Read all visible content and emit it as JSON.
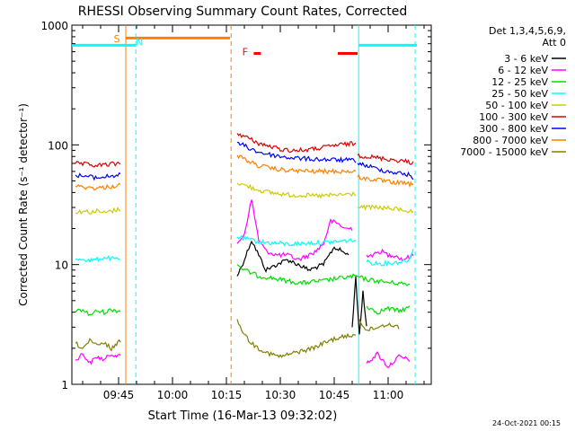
{
  "chart_data": {
    "type": "line",
    "title": "RHESSI Observing Summary Count Rates, Corrected",
    "xlabel": "Start Time (16-Mar-13 09:32:02)",
    "ylabel": "Corrected Count Rate (s⁻¹ detector⁻¹)",
    "yscale": "log",
    "ylim": [
      1,
      1000
    ],
    "xlim_minutes": [
      0,
      100
    ],
    "x_ticks": [
      {
        "m": 13,
        "label": "09:45"
      },
      {
        "m": 28,
        "label": "10:00"
      },
      {
        "m": 43,
        "label": "10:15"
      },
      {
        "m": 58,
        "label": "10:30"
      },
      {
        "m": 73,
        "label": "10:45"
      },
      {
        "m": 88,
        "label": "11:00"
      }
    ],
    "y_ticks": [
      {
        "v": 1,
        "label": "1"
      },
      {
        "v": 10,
        "label": "10"
      },
      {
        "v": 100,
        "label": "100"
      },
      {
        "v": 1000,
        "label": "1000"
      }
    ],
    "legend_header": [
      "Det 1,3,4,5,6,9,",
      "Att 0"
    ],
    "footer_date": "24-Oct-2021 00:15",
    "bands": [
      {
        "name": "3 - 6 keV",
        "color": "#000000",
        "seg": [
          {
            "x": [
              46,
              48,
              50,
              52,
              54,
              57,
              60,
              63,
              66,
              70,
              73,
              75,
              77
            ],
            "y": [
              8,
              11,
              16,
              12,
              9,
              10,
              11,
              10,
              9,
              10,
              14,
              13,
              12
            ]
          },
          {
            "x": [
              78,
              79,
              80,
              81,
              82
            ],
            "y": [
              3,
              8,
              2.5,
              6,
              3
            ]
          }
        ]
      },
      {
        "name": "6 - 12 keV",
        "color": "#ff00ff",
        "seg": [
          {
            "x": [
              1,
              3,
              5,
              7,
              9,
              11,
              13.5
            ],
            "y": [
              1.6,
              1.8,
              1.5,
              1.7,
              1.6,
              1.8,
              1.7
            ]
          },
          {
            "x": [
              46,
              48,
              50,
              52,
              54,
              57,
              60,
              63,
              66,
              68,
              70,
              72,
              74,
              76,
              78
            ],
            "y": [
              15,
              18,
              35,
              16,
              13,
              12,
              12,
              11,
              12,
              13,
              15,
              23,
              22,
              20,
              20
            ]
          },
          {
            "x": [
              82,
              84,
              86,
              88,
              90,
              92,
              95
            ],
            "y": [
              12,
              12,
              13,
              12,
              12,
              11,
              12
            ]
          },
          {
            "x": [
              82,
              85,
              88,
              91,
              94
            ],
            "y": [
              1.5,
              1.8,
              1.4,
              1.7,
              1.6
            ]
          }
        ]
      },
      {
        "name": "12 - 25 keV",
        "color": "#00dd00",
        "seg": [
          {
            "x": [
              1,
              3,
              5,
              7,
              9,
              11,
              13.5
            ],
            "y": [
              4,
              4.2,
              3.8,
              4.1,
              4,
              4.2,
              4.1
            ]
          },
          {
            "x": [
              46,
              48,
              50,
              52,
              55,
              58,
              61,
              64,
              67,
              70,
              73,
              76,
              79,
              82,
              85,
              88,
              91,
              94
            ],
            "y": [
              10,
              9,
              8.5,
              8,
              7.8,
              7.5,
              7.2,
              7,
              7.2,
              7.3,
              7.6,
              7.8,
              8,
              7.5,
              7.3,
              7.1,
              7,
              6.8
            ]
          },
          {
            "x": [
              82,
              85,
              88,
              91,
              94
            ],
            "y": [
              4.5,
              4,
              4.3,
              4.1,
              4.4
            ]
          }
        ]
      },
      {
        "name": "25 - 50 keV",
        "color": "#00ffff",
        "seg": [
          {
            "x": [
              1,
              3,
              5,
              7,
              9,
              11,
              13.5
            ],
            "y": [
              11,
              11.2,
              10.8,
              11,
              11.5,
              11.2,
              11
            ]
          },
          {
            "x": [
              46,
              48,
              50,
              52,
              55,
              58,
              61,
              64,
              67,
              70,
              73,
              76,
              79
            ],
            "y": [
              17,
              16.5,
              16,
              15.5,
              15.2,
              15,
              14.8,
              15,
              15.2,
              15.3,
              15.5,
              15.8,
              16
            ]
          },
          {
            "x": [
              82,
              85,
              88,
              91,
              94,
              95
            ],
            "y": [
              10.5,
              10.2,
              10.3,
              10.5,
              11,
              14
            ]
          }
        ]
      },
      {
        "name": "50 - 100 keV",
        "color": "#cccc00",
        "seg": [
          {
            "x": [
              1,
              3,
              5,
              7,
              9,
              11,
              13.5
            ],
            "y": [
              27,
              28,
              27.5,
              28,
              27,
              28,
              29
            ]
          },
          {
            "x": [
              46,
              48,
              50,
              52,
              55,
              58,
              61,
              64,
              67,
              70,
              73,
              76,
              79
            ],
            "y": [
              48,
              46,
              44,
              42,
              40,
              39,
              38,
              38,
              37.5,
              37.5,
              38,
              38.5,
              39
            ]
          },
          {
            "x": [
              79.5,
              82,
              85,
              88,
              91,
              94,
              95
            ],
            "y": [
              30,
              30,
              30,
              29.5,
              29,
              28,
              27
            ]
          }
        ]
      },
      {
        "name": "100 - 300 keV",
        "color": "#dd0000",
        "seg": [
          {
            "x": [
              1,
              3,
              5,
              7,
              9,
              11,
              13.5
            ],
            "y": [
              70,
              69,
              68,
              67,
              68,
              69,
              70
            ]
          },
          {
            "x": [
              46,
              48,
              50,
              52,
              55,
              58,
              61,
              64,
              67,
              70,
              73,
              76,
              79
            ],
            "y": [
              125,
              118,
              110,
              103,
              97,
              92,
              90,
              90,
              92,
              95,
              99,
              101,
              103
            ]
          },
          {
            "x": [
              79.5,
              82,
              85,
              88,
              91,
              94,
              95
            ],
            "y": [
              82,
              80,
              78,
              76,
              74,
              72,
              70
            ]
          }
        ]
      },
      {
        "name": "300 - 800 keV",
        "color": "#0000ff",
        "seg": [
          {
            "x": [
              1,
              3,
              5,
              7,
              9,
              11,
              13.5
            ],
            "y": [
              56,
              55,
              54,
              53,
              54,
              55,
              56
            ]
          },
          {
            "x": [
              46,
              48,
              50,
              52,
              55,
              58,
              61,
              64,
              67,
              70,
              73,
              76,
              79
            ],
            "y": [
              105,
              98,
              92,
              87,
              83,
              80,
              78,
              77,
              76,
              75.5,
              75,
              74.5,
              74
            ]
          },
          {
            "x": [
              79.5,
              82,
              85,
              88,
              91,
              94,
              95
            ],
            "y": [
              70,
              67,
              63,
              60,
              58,
              56,
              53
            ]
          }
        ]
      },
      {
        "name": "800 - 7000 keV",
        "color": "#ff8000",
        "seg": [
          {
            "x": [
              1,
              3,
              5,
              7,
              9,
              11,
              13.5
            ],
            "y": [
              45,
              44.5,
              44,
              43.5,
              44,
              45,
              46
            ]
          },
          {
            "x": [
              46,
              48,
              50,
              52,
              55,
              58,
              61,
              64,
              67,
              70,
              73,
              76,
              79
            ],
            "y": [
              82,
              76,
              71,
              67,
              64,
              62,
              61,
              60.5,
              60,
              60,
              60,
              60,
              60
            ]
          },
          {
            "x": [
              79.5,
              82,
              85,
              88,
              91,
              94,
              95
            ],
            "y": [
              54,
              52,
              51,
              49,
              48,
              47,
              46
            ]
          }
        ]
      },
      {
        "name": "7000 - 15000 keV",
        "color": "#808000",
        "seg": [
          {
            "x": [
              1,
              3,
              5,
              7,
              9,
              11,
              13.5
            ],
            "y": [
              2.2,
              2,
              2.3,
              2.1,
              2.2,
              2,
              2.3
            ]
          },
          {
            "x": [
              46,
              48,
              50,
              52,
              55,
              58,
              61,
              64,
              67,
              70,
              73,
              76,
              79
            ],
            "y": [
              3.5,
              2.6,
              2.2,
              2,
              1.8,
              1.7,
              1.8,
              1.9,
              2,
              2.2,
              2.4,
              2.5,
              2.6
            ]
          },
          {
            "x": [
              80,
              82,
              85,
              88,
              91
            ],
            "y": [
              3.5,
              2.8,
              3,
              3.2,
              3
            ]
          }
        ]
      }
    ],
    "flags": [
      {
        "label": "S",
        "color": "#ff8000",
        "label_m": 12.5,
        "label_v": 720,
        "bar": {
          "m1": 15,
          "m2": 44,
          "v": 780
        }
      },
      {
        "label": "N",
        "color": "#00ffff",
        "label_m": 18.8,
        "label_v": 680
      },
      {
        "label": "F",
        "color": "#ff0000",
        "label_m": 48.2,
        "label_v": 560,
        "bar": {
          "m1": 50.6,
          "m2": 52.6,
          "v": 580
        }
      },
      {
        "label": "",
        "color": "#ff0000",
        "bar": {
          "m1": 74,
          "m2": 79.5,
          "v": 580
        }
      }
    ],
    "event_lines": [
      {
        "m": 15,
        "color": "#ff8000",
        "dashed": false
      },
      {
        "m": 17.8,
        "color": "#00ffff",
        "dashed": true
      },
      {
        "m": 44.3,
        "color": "#ff8000",
        "dashed": true
      },
      {
        "m": 79.8,
        "color": "#00ffff",
        "dashed": false
      },
      {
        "m": 95.5,
        "color": "#00ffff",
        "dashed": true
      }
    ],
    "night_lines": [
      {
        "m1": 0,
        "m2": 17.8,
        "v": 680
      },
      {
        "m1": 79.8,
        "m2": 96,
        "v": 680
      }
    ],
    "grid": false,
    "legend_position": "right"
  }
}
